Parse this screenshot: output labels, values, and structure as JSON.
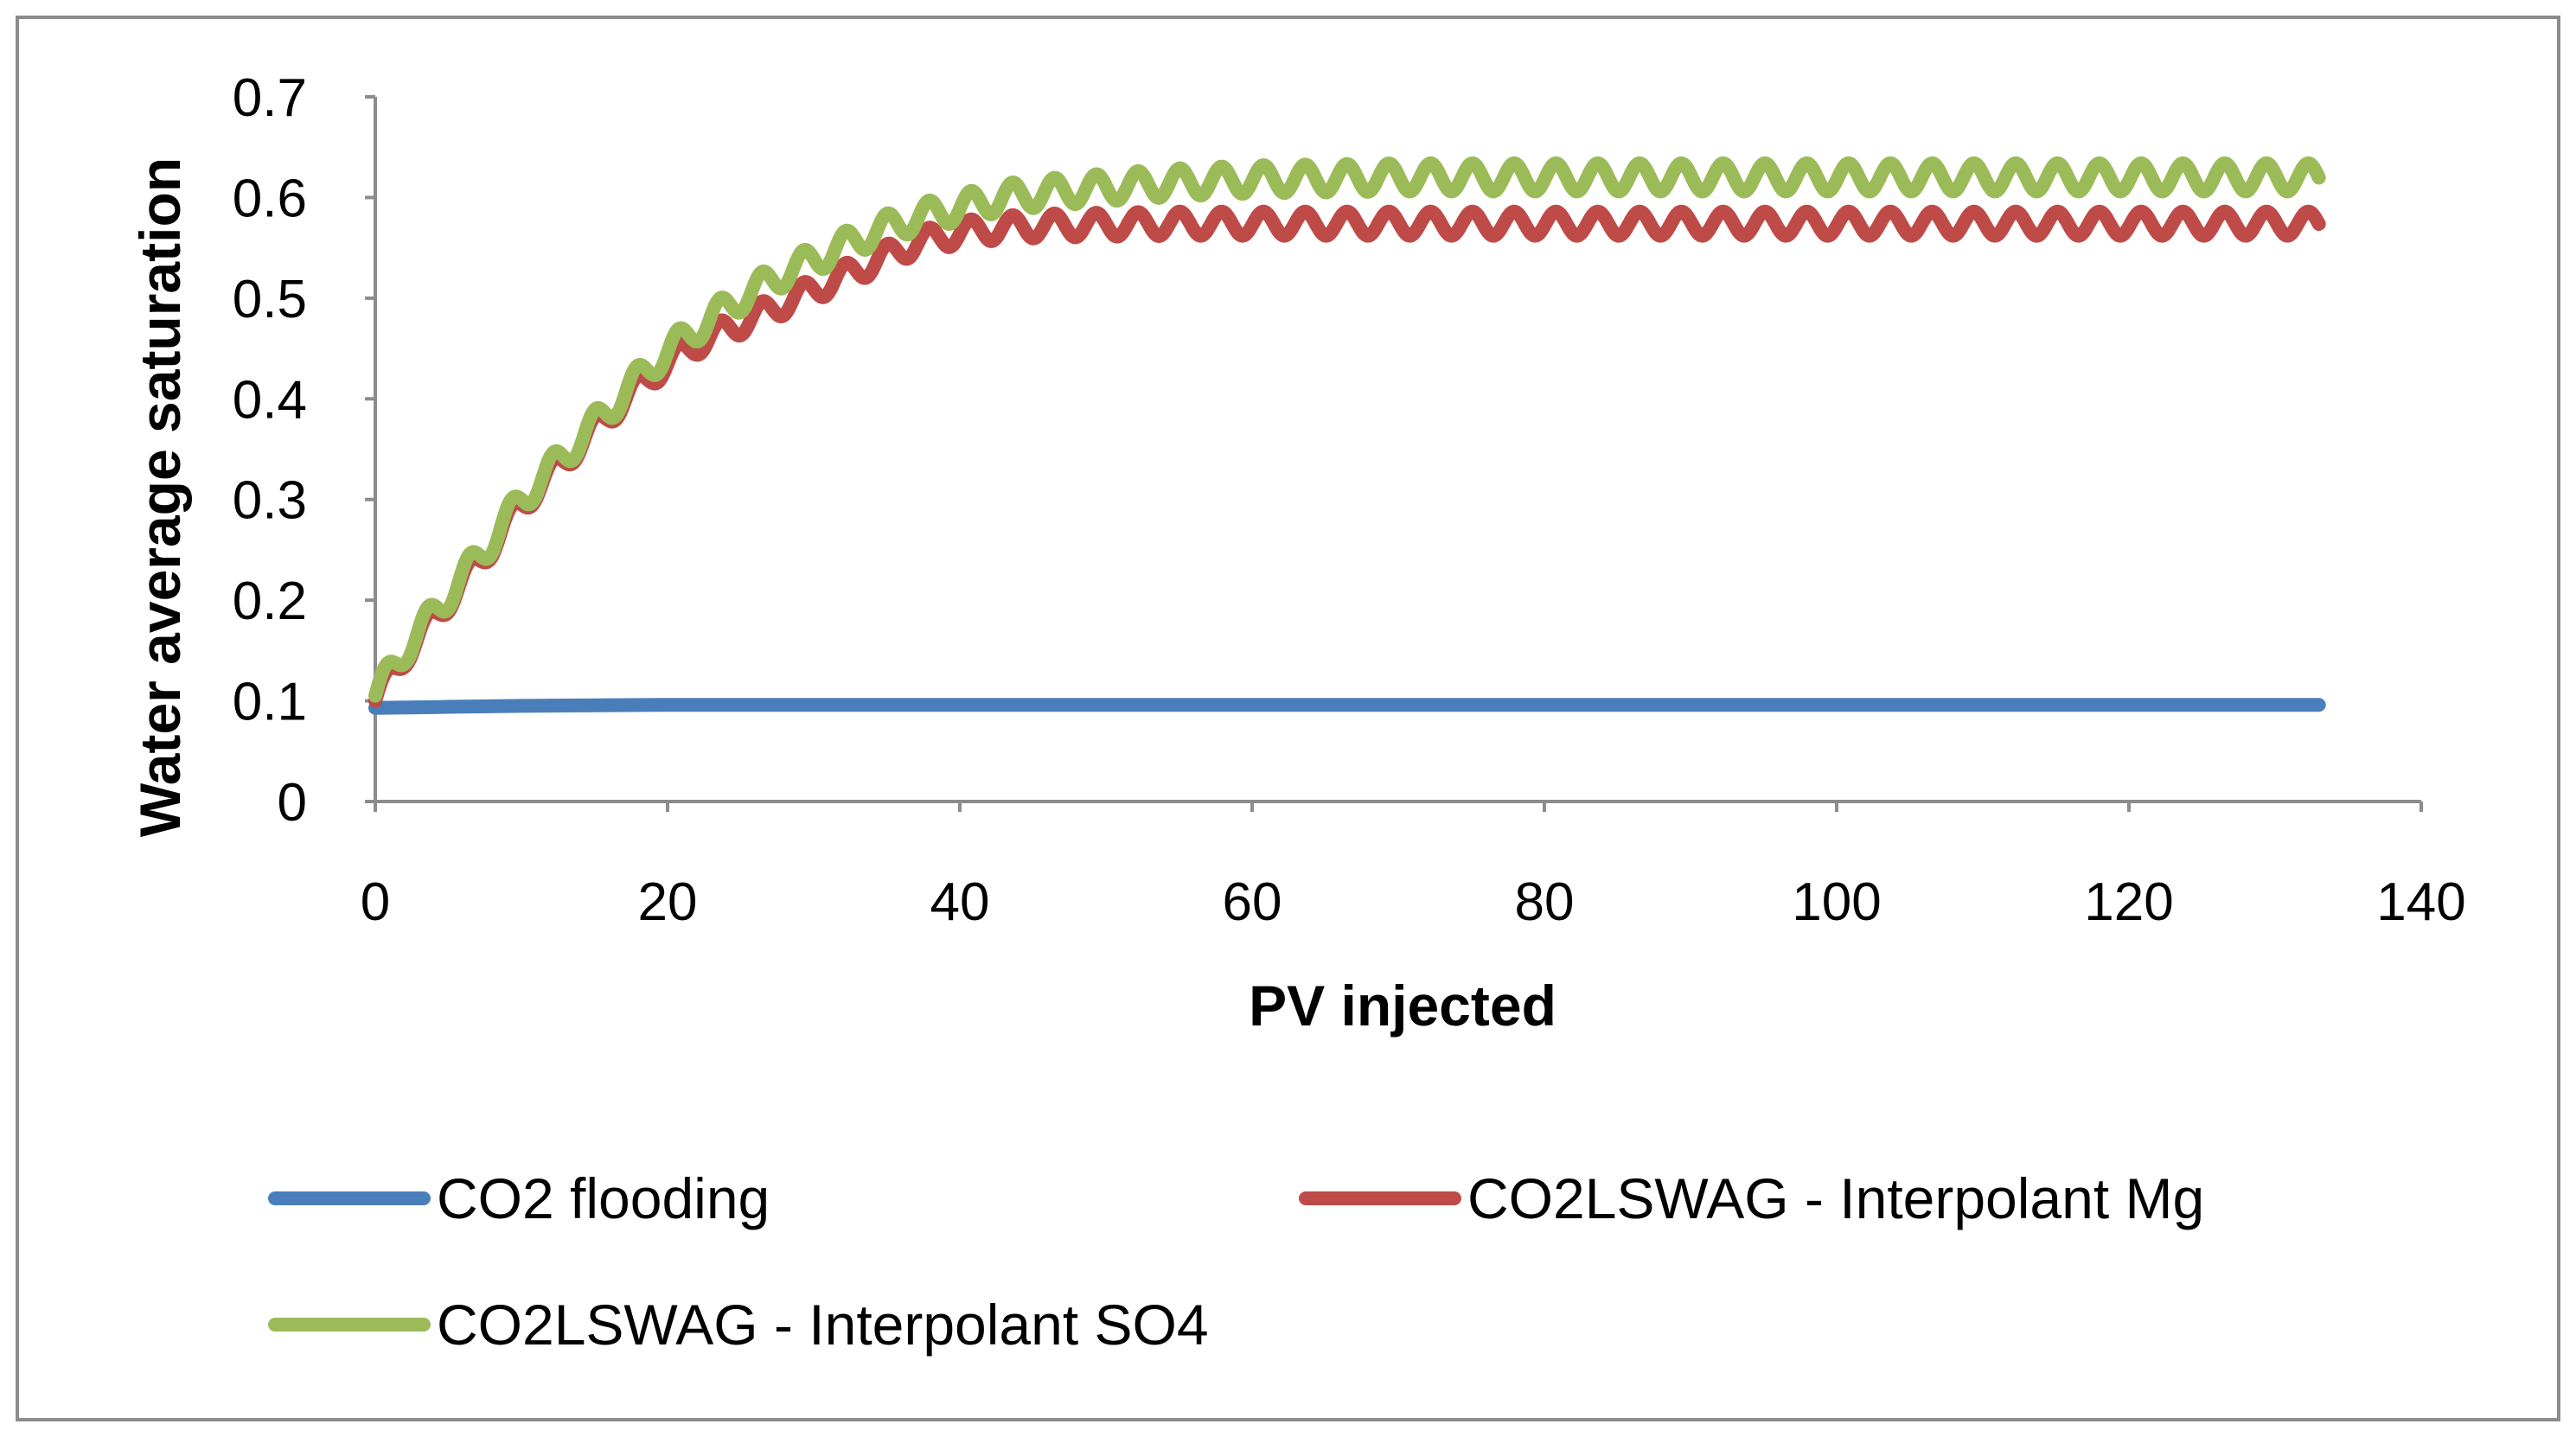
{
  "chart_data": {
    "type": "line",
    "title": "",
    "xlabel": "PV injected",
    "ylabel": "Water average saturation",
    "xlim": [
      0,
      140
    ],
    "ylim": [
      0,
      0.7
    ],
    "xticks": [
      0,
      20,
      40,
      60,
      80,
      100,
      120,
      140
    ],
    "yticks": [
      0,
      0.1,
      0.2,
      0.3,
      0.4,
      0.5,
      0.6,
      0.7
    ],
    "xtick_labels": [
      "0",
      "20",
      "40",
      "60",
      "80",
      "100",
      "120",
      "140"
    ],
    "ytick_labels": [
      "0",
      "0.1",
      "0.2",
      "0.3",
      "0.4",
      "0.5",
      "0.6",
      "0.7"
    ],
    "grid": false,
    "legend_position": "bottom",
    "series": [
      {
        "name": "CO2 flooding",
        "color": "#4A7EBB",
        "x": [
          0,
          5,
          10,
          20,
          40,
          60,
          80,
          100,
          120,
          133
        ],
        "y": [
          0.093,
          0.094,
          0.095,
          0.096,
          0.096,
          0.096,
          0.096,
          0.096,
          0.096,
          0.096
        ]
      },
      {
        "name": "CO2LSWAG - Interpolant Mg",
        "color": "#BE4B48",
        "oscillation": {
          "period": 2.86,
          "amplitude": 0.012
        },
        "x": [
          0,
          2,
          5,
          8,
          10,
          13,
          16,
          19,
          22,
          25,
          28,
          31,
          34,
          37,
          40,
          43,
          46,
          50,
          55,
          60,
          70,
          80,
          100,
          120,
          133
        ],
        "y": [
          0.1,
          0.145,
          0.2,
          0.255,
          0.295,
          0.34,
          0.385,
          0.425,
          0.455,
          0.475,
          0.495,
          0.515,
          0.535,
          0.555,
          0.565,
          0.57,
          0.572,
          0.573,
          0.574,
          0.574,
          0.574,
          0.574,
          0.574,
          0.574,
          0.574
        ]
      },
      {
        "name": "CO2LSWAG - Interpolant SO4",
        "color": "#9BBB59",
        "oscillation": {
          "period": 2.86,
          "amplitude": 0.014
        },
        "x": [
          0,
          2,
          5,
          8,
          10,
          13,
          16,
          19,
          22,
          25,
          28,
          31,
          34,
          37,
          40,
          43,
          46,
          50,
          55,
          60,
          70,
          80,
          100,
          120,
          133
        ],
        "y": [
          0.105,
          0.15,
          0.205,
          0.26,
          0.3,
          0.345,
          0.39,
          0.435,
          0.47,
          0.5,
          0.525,
          0.545,
          0.565,
          0.58,
          0.59,
          0.6,
          0.605,
          0.61,
          0.615,
          0.618,
          0.62,
          0.62,
          0.62,
          0.62,
          0.62
        ]
      }
    ]
  }
}
